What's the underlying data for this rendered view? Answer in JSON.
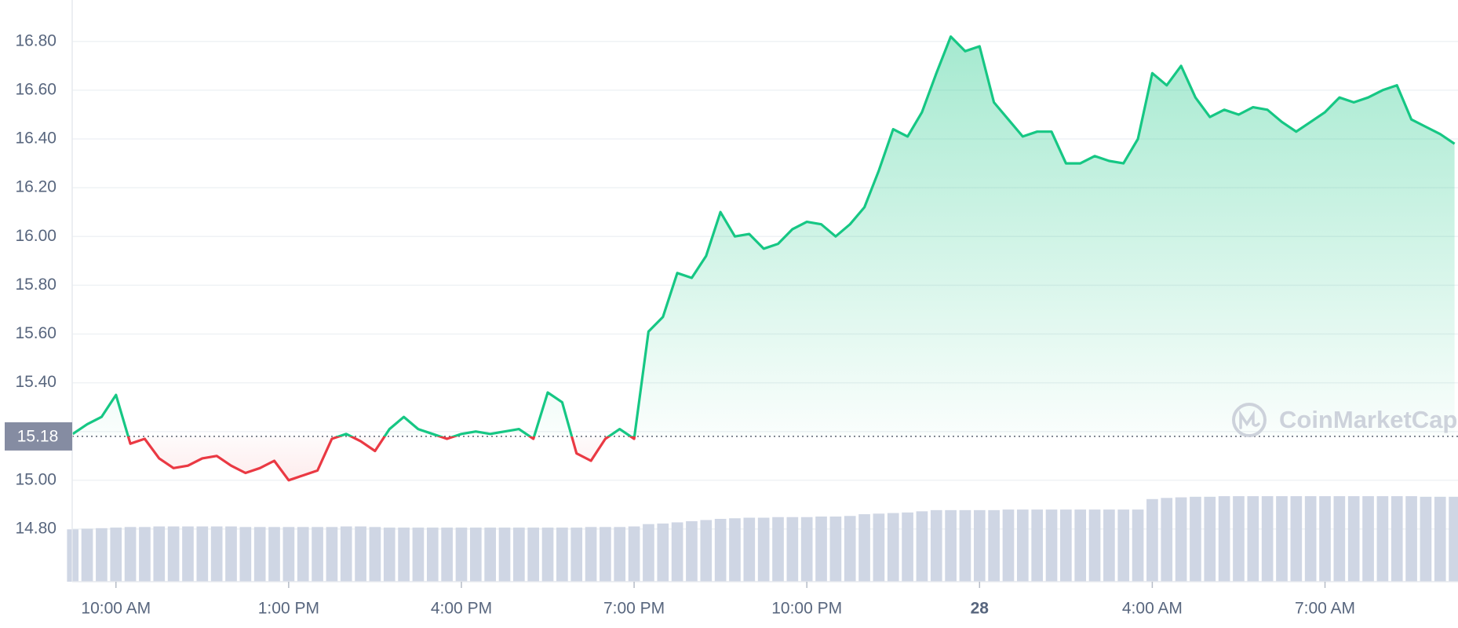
{
  "chart_data": {
    "type": "line",
    "x": [
      9.25,
      9.5,
      9.75,
      10,
      10.25,
      10.5,
      10.75,
      11,
      11.25,
      11.5,
      11.75,
      12,
      12.25,
      12.5,
      12.75,
      13,
      13.25,
      13.5,
      13.75,
      14,
      14.25,
      14.5,
      14.75,
      15,
      15.25,
      15.5,
      15.75,
      16,
      16.25,
      16.5,
      16.75,
      17,
      17.25,
      17.5,
      17.75,
      18,
      18.25,
      18.5,
      18.75,
      19,
      19.25,
      19.5,
      19.75,
      20,
      20.25,
      20.5,
      20.75,
      21,
      21.25,
      21.5,
      21.75,
      22,
      22.25,
      22.5,
      22.75,
      23,
      23.25,
      23.5,
      23.75,
      24,
      24.25,
      24.5,
      24.75,
      25,
      25.25,
      25.5,
      25.75,
      26,
      26.25,
      26.5,
      26.75,
      27,
      27.25,
      27.5,
      27.75,
      28,
      28.25,
      28.5,
      28.75,
      29,
      29.25,
      29.5,
      29.75,
      30,
      30.25,
      30.5,
      30.75,
      31,
      31.25,
      31.5,
      31.75,
      32,
      32.25,
      32.5,
      32.75,
      33,
      33.25
    ],
    "series": [
      {
        "color": "#16c784",
        "down_color": "#ea3943",
        "values": [
          15.19,
          15.23,
          15.26,
          15.35,
          15.15,
          15.17,
          15.09,
          15.05,
          15.06,
          15.09,
          15.1,
          15.06,
          15.03,
          15.05,
          15.08,
          15.0,
          15.02,
          15.04,
          15.17,
          15.19,
          15.16,
          15.12,
          15.21,
          15.26,
          15.21,
          15.19,
          15.17,
          15.19,
          15.2,
          15.19,
          15.2,
          15.21,
          15.17,
          15.36,
          15.32,
          15.11,
          15.08,
          15.17,
          15.21,
          15.17,
          15.61,
          15.67,
          15.85,
          15.83,
          15.92,
          16.1,
          16.0,
          16.01,
          15.95,
          15.97,
          16.03,
          16.06,
          16.05,
          16.0,
          16.05,
          16.12,
          16.27,
          16.44,
          16.41,
          16.51,
          16.67,
          16.82,
          16.76,
          16.78,
          16.55,
          16.48,
          16.41,
          16.43,
          16.43,
          16.3,
          16.3,
          16.33,
          16.31,
          16.3,
          16.4,
          16.67,
          16.62,
          16.7,
          16.57,
          16.49,
          16.52,
          16.5,
          16.53,
          16.52,
          16.47,
          16.43,
          16.47,
          16.51,
          16.57,
          16.55,
          16.57,
          16.6,
          16.62,
          16.48,
          16.45,
          16.42,
          16.38
        ]
      },
      {
        "axis": "y2",
        "color": "#cfd6e4",
        "values": [
          9.0,
          9.1,
          9.2,
          9.3,
          9.4,
          9.4,
          9.5,
          9.5,
          9.5,
          9.5,
          9.5,
          9.5,
          9.4,
          9.4,
          9.4,
          9.4,
          9.4,
          9.4,
          9.4,
          9.5,
          9.5,
          9.4,
          9.3,
          9.3,
          9.3,
          9.3,
          9.3,
          9.3,
          9.3,
          9.3,
          9.3,
          9.3,
          9.3,
          9.3,
          9.3,
          9.3,
          9.4,
          9.4,
          9.4,
          9.5,
          9.9,
          10.0,
          10.2,
          10.4,
          10.6,
          10.8,
          10.9,
          11.0,
          11.0,
          11.1,
          11.1,
          11.1,
          11.2,
          11.2,
          11.3,
          11.6,
          11.7,
          11.8,
          11.9,
          12.1,
          12.3,
          12.3,
          12.3,
          12.3,
          12.3,
          12.4,
          12.4,
          12.4,
          12.4,
          12.4,
          12.4,
          12.4,
          12.4,
          12.4,
          12.4,
          14.2,
          14.4,
          14.5,
          14.6,
          14.6,
          14.7,
          14.7,
          14.7,
          14.7,
          14.7,
          14.7,
          14.7,
          14.7,
          14.7,
          14.7,
          14.7,
          14.7,
          14.7,
          14.7,
          14.6,
          14.6,
          14.6
        ]
      }
    ],
    "baseline": 15.18,
    "xlim": [
      9.24,
      33.31
    ],
    "xticks": [
      {
        "value": 10,
        "label": "10:00 AM"
      },
      {
        "value": 13,
        "label": "1:00 PM"
      },
      {
        "value": 16,
        "label": "4:00 PM"
      },
      {
        "value": 19,
        "label": "7:00 PM"
      },
      {
        "value": 22,
        "label": "10:00 PM"
      },
      {
        "value": 25,
        "label": "28"
      },
      {
        "value": 28,
        "label": "4:00 AM"
      },
      {
        "value": 31,
        "label": "7:00 AM"
      }
    ],
    "ylim": [
      14.584,
      16.97
    ],
    "yticks": [
      {
        "value": 14.8,
        "label": "14.80"
      },
      {
        "value": 15.0,
        "label": "15.00"
      },
      {
        "value": 15.2,
        "label": "15.20"
      },
      {
        "value": 15.4,
        "label": "15.40"
      },
      {
        "value": 15.6,
        "label": "15.60"
      },
      {
        "value": 15.8,
        "label": "15.80"
      },
      {
        "value": 16.0,
        "label": "16.00"
      },
      {
        "value": 16.2,
        "label": "16.20"
      },
      {
        "value": 16.4,
        "label": "16.40"
      },
      {
        "value": 16.6,
        "label": "16.60"
      },
      {
        "value": 16.8,
        "label": "16.80"
      }
    ],
    "y2lim": [
      0,
      100
    ],
    "grid": true,
    "watermark": "CoinMarketCap"
  }
}
